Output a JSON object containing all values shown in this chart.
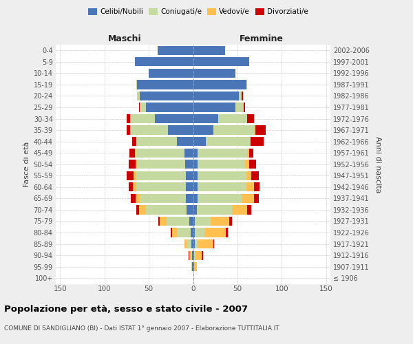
{
  "age_groups": [
    "100+",
    "95-99",
    "90-94",
    "85-89",
    "80-84",
    "75-79",
    "70-74",
    "65-69",
    "60-64",
    "55-59",
    "50-54",
    "45-49",
    "40-44",
    "35-39",
    "30-34",
    "25-29",
    "20-24",
    "15-19",
    "10-14",
    "5-9",
    "0-4"
  ],
  "birth_years": [
    "≤ 1906",
    "1907-1911",
    "1912-1916",
    "1917-1921",
    "1922-1926",
    "1927-1931",
    "1932-1936",
    "1937-1941",
    "1942-1946",
    "1947-1951",
    "1952-1956",
    "1957-1961",
    "1962-1966",
    "1967-1971",
    "1972-1976",
    "1977-1981",
    "1982-1986",
    "1987-1991",
    "1992-1996",
    "1997-2001",
    "2002-2006"
  ],
  "maschi": {
    "celibi": [
      0,
      1,
      1,
      2,
      3,
      4,
      7,
      8,
      8,
      8,
      9,
      10,
      18,
      28,
      43,
      53,
      60,
      63,
      50,
      66,
      40
    ],
    "coniugati": [
      0,
      1,
      2,
      5,
      15,
      26,
      46,
      52,
      56,
      56,
      54,
      55,
      46,
      43,
      28,
      7,
      3,
      1,
      0,
      0,
      0
    ],
    "vedovi": [
      0,
      0,
      1,
      3,
      6,
      8,
      8,
      5,
      4,
      3,
      2,
      1,
      0,
      0,
      0,
      0,
      0,
      0,
      0,
      0,
      0
    ],
    "divorziati": [
      0,
      0,
      1,
      0,
      1,
      1,
      3,
      5,
      5,
      8,
      8,
      6,
      5,
      4,
      4,
      1,
      0,
      0,
      0,
      0,
      0
    ]
  },
  "femmine": {
    "nubili": [
      0,
      1,
      1,
      2,
      2,
      2,
      4,
      5,
      5,
      5,
      5,
      5,
      14,
      23,
      28,
      48,
      52,
      60,
      48,
      63,
      36
    ],
    "coniugate": [
      0,
      0,
      1,
      4,
      11,
      18,
      40,
      50,
      55,
      55,
      54,
      56,
      50,
      46,
      33,
      9,
      3,
      1,
      0,
      0,
      0
    ],
    "vedove": [
      0,
      3,
      8,
      17,
      24,
      21,
      17,
      14,
      9,
      6,
      4,
      2,
      1,
      1,
      0,
      0,
      0,
      0,
      0,
      0,
      0
    ],
    "divorziate": [
      0,
      0,
      1,
      1,
      2,
      3,
      5,
      5,
      6,
      8,
      8,
      5,
      15,
      12,
      8,
      2,
      1,
      0,
      0,
      0,
      0
    ]
  },
  "colors": {
    "celibi": "#4a76b8",
    "coniugati": "#c5d9a0",
    "vedovi": "#ffc050",
    "divorziati": "#cc0000"
  },
  "xlim": 155,
  "xticks": [
    150,
    100,
    50,
    0,
    50,
    100,
    150
  ],
  "title": "Popolazione per età, sesso e stato civile - 2007",
  "subtitle": "COMUNE DI SANDIGLIANO (BI) - Dati ISTAT 1° gennaio 2007 - Elaborazione TUTTITALIA.IT",
  "ylabel_left": "Fasce di età",
  "ylabel_right": "Anni di nascita",
  "header_left": "Maschi",
  "header_right": "Femmine",
  "bg_color": "#eeeeee",
  "plot_bg": "#ffffff",
  "legend": [
    "Celibi/Nubili",
    "Coniugati/e",
    "Vedovi/e",
    "Divorziati/e"
  ]
}
